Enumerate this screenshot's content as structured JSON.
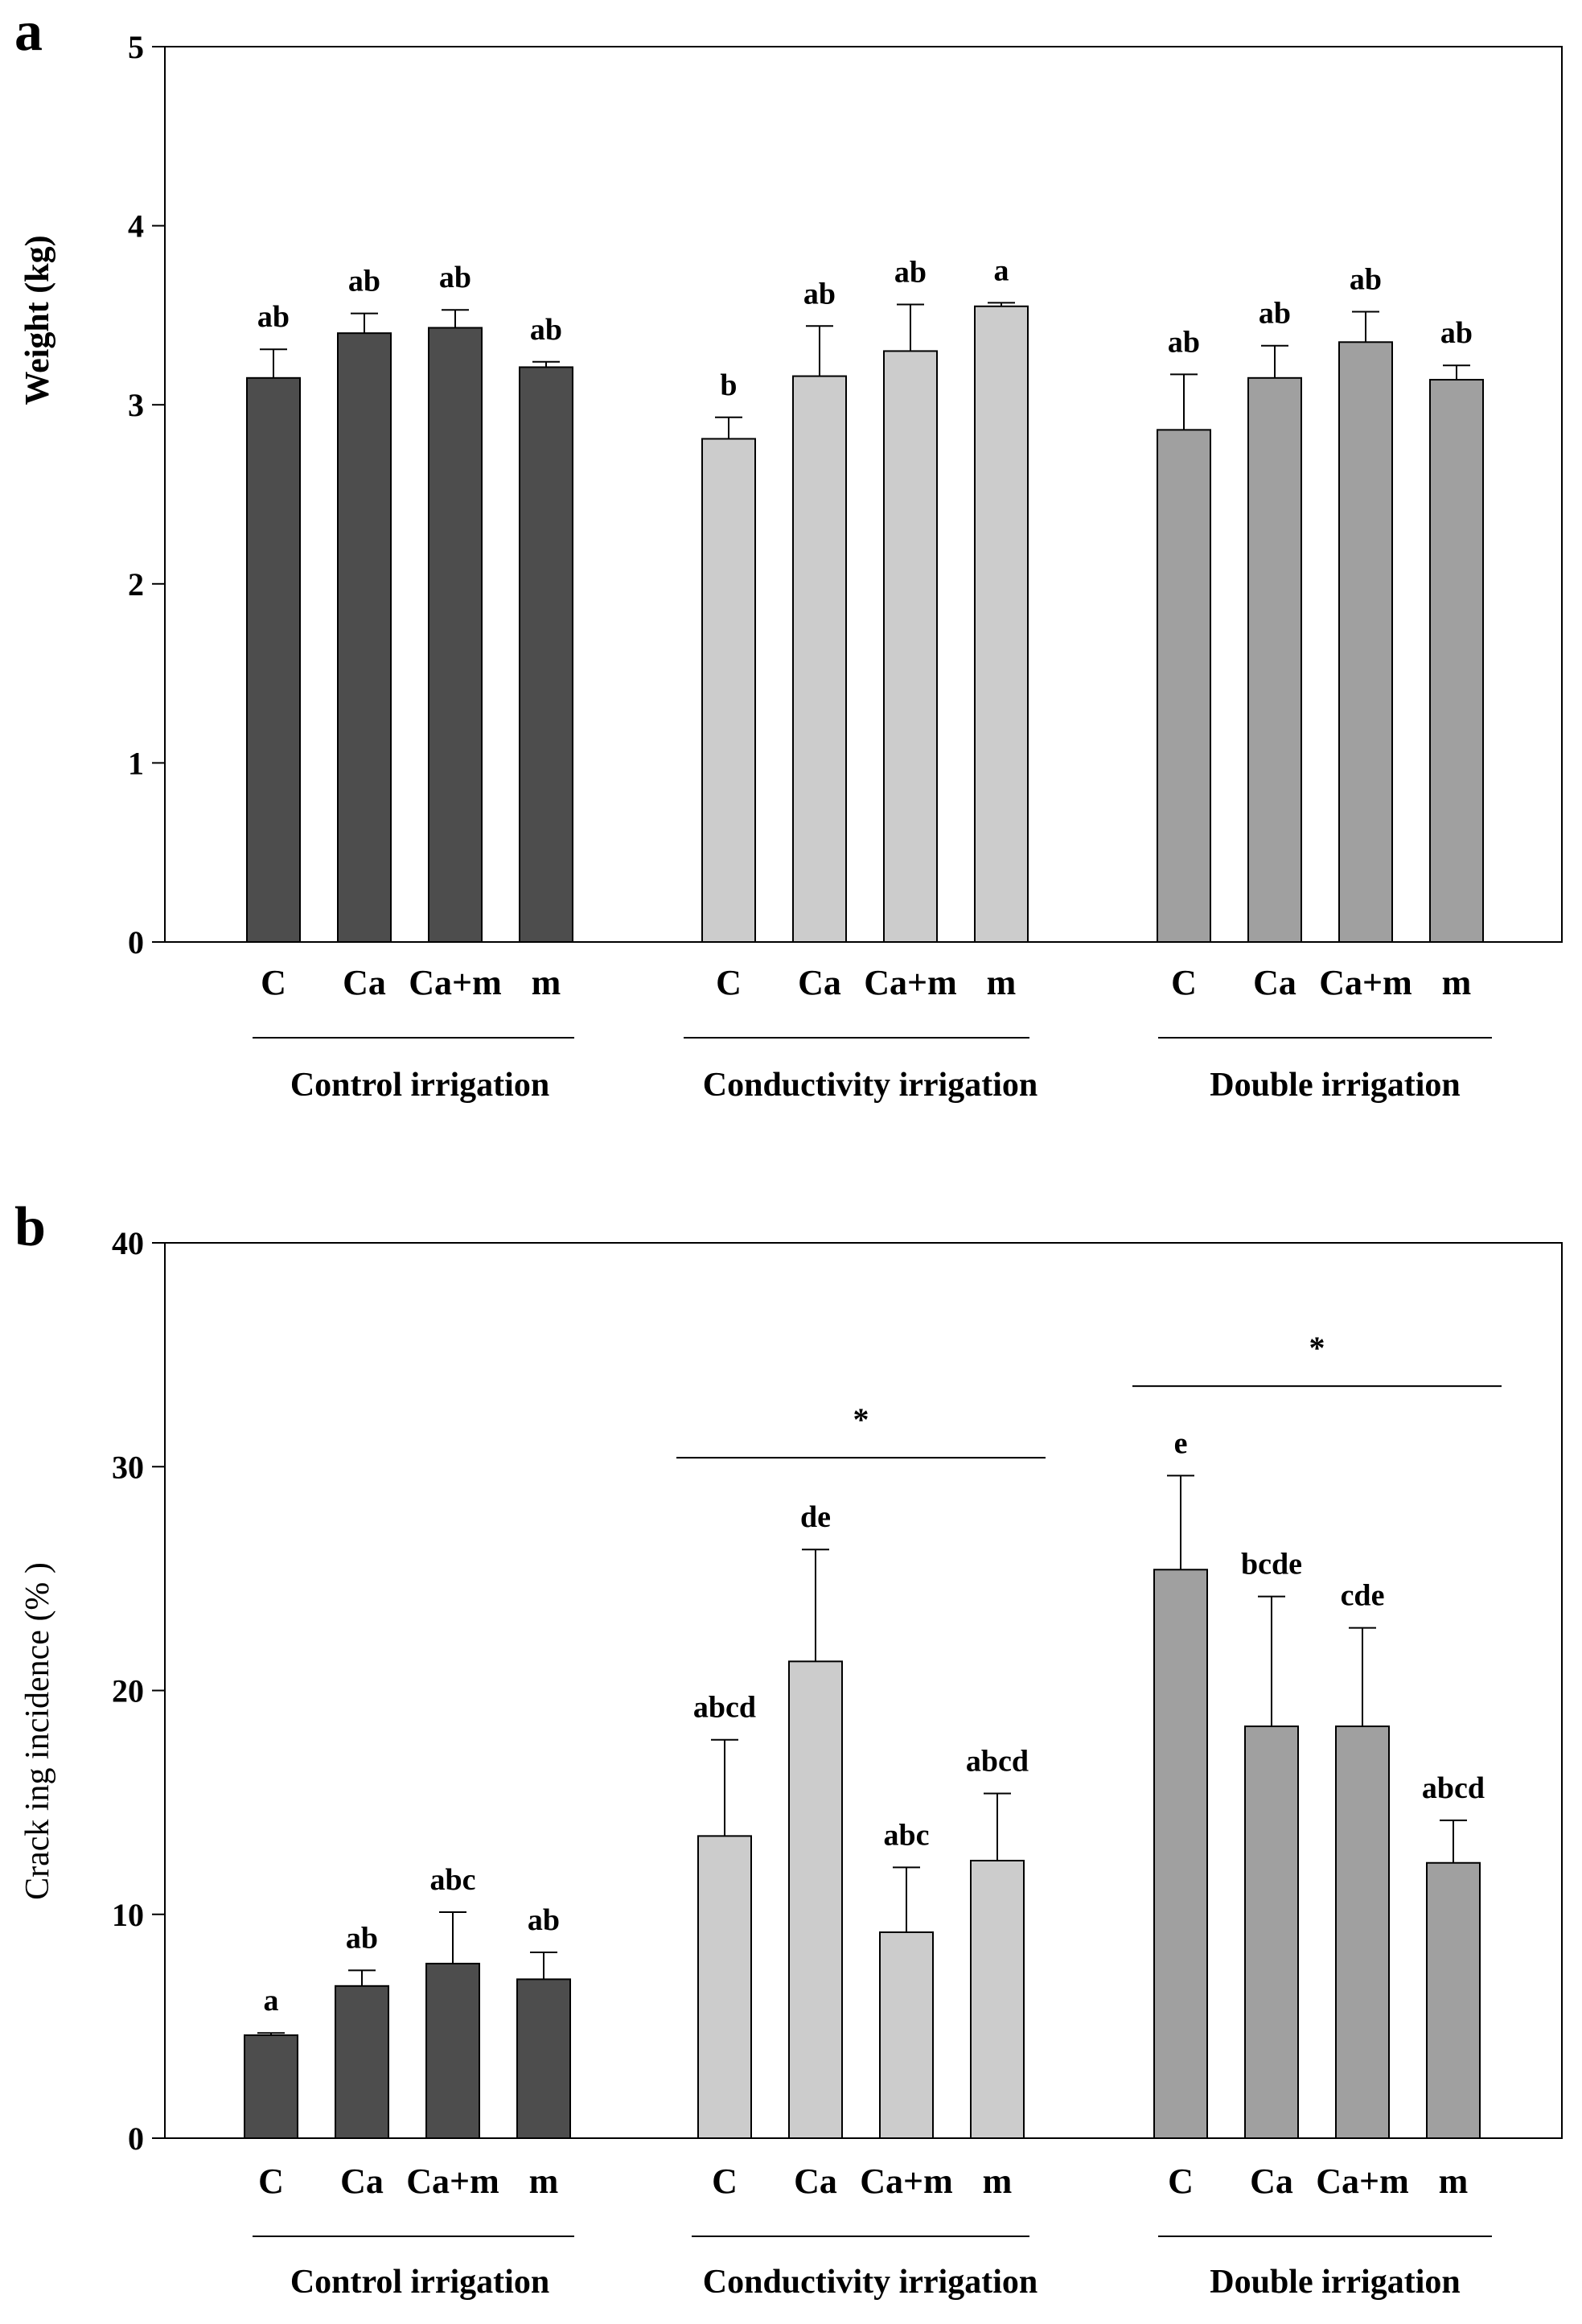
{
  "chart_data": [
    {
      "panel": "a",
      "type": "bar",
      "ylabel": "Weight (kg)",
      "ylim": [
        0,
        5
      ],
      "yticks": [
        "0",
        "1",
        "2",
        "3",
        "4",
        "5"
      ],
      "groups": [
        {
          "name": "Control irrigation",
          "color": "#4d4d4d",
          "categories": [
            "C",
            "Ca",
            "Ca+m",
            "m"
          ],
          "values": [
            3.15,
            3.4,
            3.43,
            3.21
          ],
          "errors": [
            0.16,
            0.11,
            0.1,
            0.03
          ],
          "letters": [
            "ab",
            "ab",
            "ab",
            "ab"
          ]
        },
        {
          "name": "Conductivity irrigation",
          "color": "#cccccc",
          "categories": [
            "C",
            "Ca",
            "Ca+m",
            "m"
          ],
          "values": [
            2.81,
            3.16,
            3.3,
            3.55
          ],
          "errors": [
            0.12,
            0.28,
            0.26,
            0.02
          ],
          "letters": [
            "b",
            "ab",
            "ab",
            "a"
          ]
        },
        {
          "name": "Double irrigation",
          "color": "#a0a0a0",
          "categories": [
            "C",
            "Ca",
            "Ca+m",
            "m"
          ],
          "values": [
            2.86,
            3.15,
            3.35,
            3.14
          ],
          "errors": [
            0.31,
            0.18,
            0.17,
            0.08
          ],
          "letters": [
            "ab",
            "ab",
            "ab",
            "ab"
          ]
        }
      ],
      "significance": []
    },
    {
      "panel": "b",
      "type": "bar",
      "ylabel": "Crack ing incidence (% )",
      "ylim": [
        0,
        40
      ],
      "yticks": [
        "0",
        "10",
        "20",
        "30",
        "40"
      ],
      "groups": [
        {
          "name": "Control irrigation",
          "color": "#4d4d4d",
          "categories": [
            "C",
            "Ca",
            "Ca+m",
            "m"
          ],
          "values": [
            4.6,
            6.8,
            7.8,
            7.1
          ],
          "errors": [
            0.1,
            0.7,
            2.3,
            1.2
          ],
          "letters": [
            "a",
            "ab",
            "abc",
            "ab"
          ]
        },
        {
          "name": "Conductivity irrigation",
          "color": "#cccccc",
          "categories": [
            "C",
            "Ca",
            "Ca+m",
            "m"
          ],
          "values": [
            13.5,
            21.3,
            9.2,
            12.4
          ],
          "errors": [
            4.3,
            5.0,
            2.9,
            3.0
          ],
          "letters": [
            "abcd",
            "de",
            "abc",
            "abcd"
          ]
        },
        {
          "name": "Double irrigation",
          "color": "#a0a0a0",
          "categories": [
            "C",
            "Ca",
            "Ca+m",
            "m"
          ],
          "values": [
            25.4,
            18.4,
            18.4,
            12.3
          ],
          "errors": [
            4.2,
            5.8,
            4.4,
            1.9
          ],
          "letters": [
            "e",
            "bcde",
            "cde",
            "abcd"
          ]
        }
      ],
      "significance": [
        {
          "group": "Conductivity irrigation",
          "label": "*",
          "level": 30.4
        },
        {
          "group": "Double irrigation",
          "label": "*",
          "level": 33.6
        }
      ]
    }
  ]
}
